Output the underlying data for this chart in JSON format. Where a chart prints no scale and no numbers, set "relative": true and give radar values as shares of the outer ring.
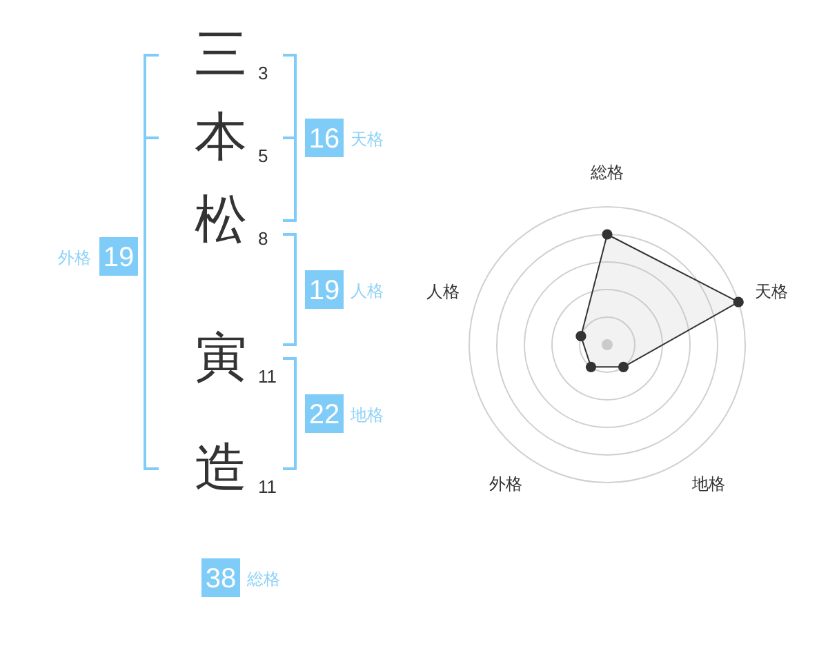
{
  "chart_data": [
    {
      "type": "other",
      "categories": [
        "三",
        "本",
        "松",
        "寅",
        "造"
      ],
      "values": [
        3,
        5,
        8,
        11,
        11
      ],
      "data_labels": true
    },
    {
      "type": "other",
      "categories": [
        "天格",
        "人格",
        "地格",
        "外格",
        "総格"
      ],
      "values": [
        16,
        19,
        22,
        19,
        38
      ],
      "color": "#80ccf8",
      "data_labels": true
    },
    {
      "type": "radar",
      "categories": [
        "総格",
        "天格",
        "地格",
        "外格",
        "人格"
      ],
      "values": [
        0.8,
        1,
        0.2,
        0.2,
        0.2
      ],
      "relative": true,
      "color": "#333333",
      "grid": true,
      "marker": "circle"
    }
  ]
}
